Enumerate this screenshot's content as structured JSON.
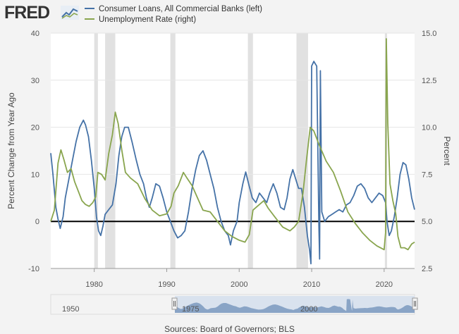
{
  "header": {
    "logo": "FRED",
    "logo_icon": "chart-line-icon"
  },
  "legend": {
    "series_1": "Consumer Loans, All Commercial Banks (left)",
    "series_2": "Unemployment Rate (right)"
  },
  "navigator": {
    "start_label": "1950",
    "mid_labels": [
      "1975",
      "2000"
    ]
  },
  "footer": {
    "source": "Sources: Board of Governors; BLS"
  },
  "colors": {
    "series_1": "#4572a7",
    "series_2": "#89a54e",
    "recession": "#e1e1e1",
    "zero_line": "#000000",
    "frame": "#f3f3f3",
    "plot": "#ffffff"
  },
  "chart_data": {
    "type": "line",
    "ylabel_left": "Percent Change from Year Ago",
    "ylabel_right": "Percent",
    "xlim": [
      1974.0,
      2024.2
    ],
    "ylim_left": [
      -10,
      40
    ],
    "ylim_right": [
      2.5,
      15.0
    ],
    "x_ticks": [
      "1980",
      "1990",
      "2000",
      "2010",
      "2020"
    ],
    "y_ticks_left": [
      "40",
      "30",
      "20",
      "10",
      "0",
      "-10"
    ],
    "y_ticks_right": [
      "15.0",
      "12.5",
      "10.0",
      "7.5",
      "5.0",
      "2.5"
    ],
    "recessions": [
      [
        1980.0,
        1980.5
      ],
      [
        1981.5,
        1982.9
      ],
      [
        1990.5,
        1991.2
      ],
      [
        2001.2,
        2001.9
      ],
      [
        2007.9,
        2009.5
      ],
      [
        2020.1,
        2020.4
      ]
    ],
    "series": [
      {
        "name": "Consumer Loans, All Commercial Banks (left)",
        "axis": "left",
        "points": [
          [
            1974.0,
            14.5
          ],
          [
            1974.3,
            10
          ],
          [
            1974.7,
            3
          ],
          [
            1975.0,
            0.5
          ],
          [
            1975.3,
            -1.5
          ],
          [
            1975.7,
            1
          ],
          [
            1976.0,
            5
          ],
          [
            1976.5,
            9
          ],
          [
            1977.0,
            13
          ],
          [
            1977.5,
            17
          ],
          [
            1978.0,
            20
          ],
          [
            1978.5,
            21.5
          ],
          [
            1978.8,
            20.5
          ],
          [
            1979.2,
            18
          ],
          [
            1979.6,
            13
          ],
          [
            1980.0,
            7
          ],
          [
            1980.3,
            1
          ],
          [
            1980.6,
            -2
          ],
          [
            1980.9,
            -3
          ],
          [
            1981.2,
            -1
          ],
          [
            1981.5,
            1.5
          ],
          [
            1982.0,
            2.5
          ],
          [
            1982.5,
            3.5
          ],
          [
            1983.0,
            8
          ],
          [
            1983.4,
            14
          ],
          [
            1983.8,
            18
          ],
          [
            1984.2,
            20
          ],
          [
            1984.7,
            20
          ],
          [
            1985.2,
            17
          ],
          [
            1985.8,
            13
          ],
          [
            1986.3,
            10
          ],
          [
            1986.8,
            8
          ],
          [
            1987.2,
            5
          ],
          [
            1987.6,
            3
          ],
          [
            1988.0,
            5
          ],
          [
            1988.5,
            8
          ],
          [
            1989.0,
            7.5
          ],
          [
            1989.5,
            5
          ],
          [
            1990.0,
            2
          ],
          [
            1990.5,
            0
          ],
          [
            1991.0,
            -2
          ],
          [
            1991.5,
            -3.5
          ],
          [
            1992.0,
            -3
          ],
          [
            1992.5,
            -2
          ],
          [
            1993.0,
            2
          ],
          [
            1993.5,
            7
          ],
          [
            1994.0,
            11
          ],
          [
            1994.5,
            14
          ],
          [
            1995.0,
            15
          ],
          [
            1995.5,
            13
          ],
          [
            1996.0,
            10
          ],
          [
            1996.5,
            7
          ],
          [
            1997.0,
            3
          ],
          [
            1997.5,
            0
          ],
          [
            1998.0,
            -2
          ],
          [
            1998.5,
            -3
          ],
          [
            1998.8,
            -5
          ],
          [
            1999.2,
            -2
          ],
          [
            1999.7,
            0
          ],
          [
            2000.0,
            4
          ],
          [
            2000.5,
            8
          ],
          [
            2000.9,
            10.5
          ],
          [
            2001.3,
            8
          ],
          [
            2001.8,
            5
          ],
          [
            2002.3,
            4
          ],
          [
            2002.8,
            6
          ],
          [
            2003.3,
            5
          ],
          [
            2003.8,
            4
          ],
          [
            2004.2,
            6
          ],
          [
            2004.7,
            8
          ],
          [
            2005.2,
            6
          ],
          [
            2005.7,
            3
          ],
          [
            2006.2,
            2.5
          ],
          [
            2006.6,
            5
          ],
          [
            2007.0,
            9
          ],
          [
            2007.4,
            11
          ],
          [
            2007.8,
            9
          ],
          [
            2008.2,
            7
          ],
          [
            2008.6,
            7
          ],
          [
            2009.0,
            3
          ],
          [
            2009.4,
            -3
          ],
          [
            2009.7,
            -6
          ],
          [
            2009.9,
            -9
          ],
          [
            2010.0,
            33
          ],
          [
            2010.3,
            34
          ],
          [
            2010.7,
            33
          ],
          [
            2011.0,
            -1
          ],
          [
            2011.1,
            -8
          ],
          [
            2011.2,
            32
          ],
          [
            2011.4,
            2
          ],
          [
            2011.8,
            0
          ],
          [
            2012.3,
            1
          ],
          [
            2012.8,
            1.5
          ],
          [
            2013.3,
            2
          ],
          [
            2013.8,
            2.5
          ],
          [
            2014.3,
            2
          ],
          [
            2014.8,
            3.5
          ],
          [
            2015.3,
            4
          ],
          [
            2015.8,
            5.5
          ],
          [
            2016.3,
            7.5
          ],
          [
            2016.8,
            8
          ],
          [
            2017.3,
            7
          ],
          [
            2017.8,
            5
          ],
          [
            2018.3,
            4
          ],
          [
            2018.8,
            5
          ],
          [
            2019.3,
            6
          ],
          [
            2019.8,
            5.5
          ],
          [
            2020.2,
            4
          ],
          [
            2020.4,
            0
          ],
          [
            2020.7,
            -3
          ],
          [
            2021.0,
            -2
          ],
          [
            2021.4,
            1
          ],
          [
            2021.8,
            5
          ],
          [
            2022.2,
            10
          ],
          [
            2022.6,
            12.5
          ],
          [
            2023.0,
            12
          ],
          [
            2023.4,
            9
          ],
          [
            2023.8,
            5
          ],
          [
            2024.2,
            2.5
          ]
        ]
      },
      {
        "name": "Unemployment Rate (right)",
        "axis": "right",
        "points": [
          [
            1974.0,
            5.0
          ],
          [
            1974.5,
            5.6
          ],
          [
            1975.0,
            8.1
          ],
          [
            1975.4,
            8.8
          ],
          [
            1975.8,
            8.3
          ],
          [
            1976.3,
            7.6
          ],
          [
            1976.8,
            7.8
          ],
          [
            1977.3,
            7.1
          ],
          [
            1977.8,
            6.6
          ],
          [
            1978.3,
            6.1
          ],
          [
            1978.8,
            5.9
          ],
          [
            1979.3,
            5.8
          ],
          [
            1979.8,
            6.0
          ],
          [
            1980.2,
            6.3
          ],
          [
            1980.5,
            7.6
          ],
          [
            1981.0,
            7.5
          ],
          [
            1981.5,
            7.2
          ],
          [
            1982.0,
            8.6
          ],
          [
            1982.5,
            9.6
          ],
          [
            1982.9,
            10.8
          ],
          [
            1983.3,
            10.2
          ],
          [
            1983.8,
            8.8
          ],
          [
            1984.3,
            7.6
          ],
          [
            1985.0,
            7.3
          ],
          [
            1986.0,
            7.0
          ],
          [
            1987.0,
            6.2
          ],
          [
            1988.0,
            5.6
          ],
          [
            1989.0,
            5.3
          ],
          [
            1990.0,
            5.4
          ],
          [
            1990.6,
            5.8
          ],
          [
            1991.0,
            6.5
          ],
          [
            1991.6,
            6.9
          ],
          [
            1992.3,
            7.6
          ],
          [
            1992.8,
            7.3
          ],
          [
            1993.5,
            6.9
          ],
          [
            1994.3,
            6.2
          ],
          [
            1995.0,
            5.6
          ],
          [
            1996.0,
            5.5
          ],
          [
            1997.0,
            5.0
          ],
          [
            1998.0,
            4.5
          ],
          [
            1999.0,
            4.2
          ],
          [
            2000.0,
            4.0
          ],
          [
            2000.8,
            3.9
          ],
          [
            2001.4,
            4.3
          ],
          [
            2001.9,
            5.6
          ],
          [
            2002.5,
            5.8
          ],
          [
            2003.4,
            6.1
          ],
          [
            2004.0,
            5.7
          ],
          [
            2005.0,
            5.2
          ],
          [
            2006.0,
            4.7
          ],
          [
            2007.0,
            4.5
          ],
          [
            2007.6,
            4.7
          ],
          [
            2008.2,
            5.0
          ],
          [
            2008.8,
            6.5
          ],
          [
            2009.3,
            8.3
          ],
          [
            2009.8,
            10.0
          ],
          [
            2010.3,
            9.8
          ],
          [
            2011.0,
            9.1
          ],
          [
            2012.0,
            8.2
          ],
          [
            2013.0,
            7.6
          ],
          [
            2014.0,
            6.6
          ],
          [
            2015.0,
            5.5
          ],
          [
            2016.0,
            4.9
          ],
          [
            2017.0,
            4.4
          ],
          [
            2018.0,
            4.0
          ],
          [
            2019.0,
            3.7
          ],
          [
            2020.0,
            3.5
          ],
          [
            2020.2,
            4.4
          ],
          [
            2020.3,
            14.7
          ],
          [
            2020.5,
            10.2
          ],
          [
            2020.8,
            7.0
          ],
          [
            2021.2,
            6.1
          ],
          [
            2021.6,
            5.4
          ],
          [
            2021.9,
            4.2
          ],
          [
            2022.3,
            3.6
          ],
          [
            2022.8,
            3.6
          ],
          [
            2023.3,
            3.5
          ],
          [
            2023.8,
            3.8
          ],
          [
            2024.2,
            3.9
          ]
        ]
      }
    ]
  }
}
